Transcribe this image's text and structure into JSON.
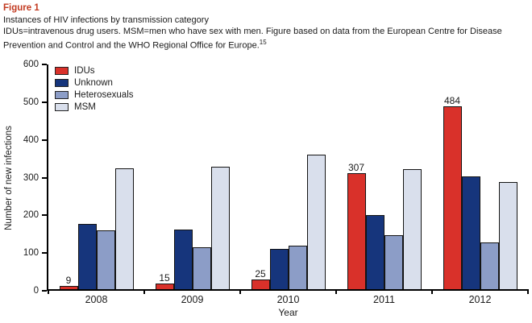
{
  "header": {
    "figure_label": "Figure 1",
    "title": "Instances of HIV infections by transmission category",
    "note": "IDUs=intravenous drug users. MSM=men who have sex with men. Figure based on data from the European Centre for Disease Prevention and Control and the WHO Regional Office for Europe.",
    "note_ref": "15"
  },
  "chart_data": {
    "type": "bar",
    "title": "",
    "categories": [
      "2008",
      "2009",
      "2010",
      "2011",
      "2012"
    ],
    "series": [
      {
        "name": "IDUs",
        "color": "#d9312a",
        "values": [
          9,
          15,
          25,
          307,
          484
        ],
        "labels": [
          "9",
          "15",
          "25",
          "307",
          "484"
        ]
      },
      {
        "name": "Unknown",
        "color": "#16357c",
        "values": [
          172,
          157,
          107,
          196,
          298
        ]
      },
      {
        "name": "Heterosexuals",
        "color": "#8c9dc7",
        "values": [
          155,
          112,
          116,
          144,
          123
        ]
      },
      {
        "name": "MSM",
        "color": "#d9dfec",
        "values": [
          320,
          324,
          357,
          319,
          283
        ]
      }
    ],
    "xlabel": "Year",
    "ylabel": "Number of new infections",
    "ylim": [
      0,
      600
    ],
    "yticks": [
      0,
      100,
      200,
      300,
      400,
      500,
      600
    ],
    "legend_position": "top-left",
    "grid": false
  }
}
